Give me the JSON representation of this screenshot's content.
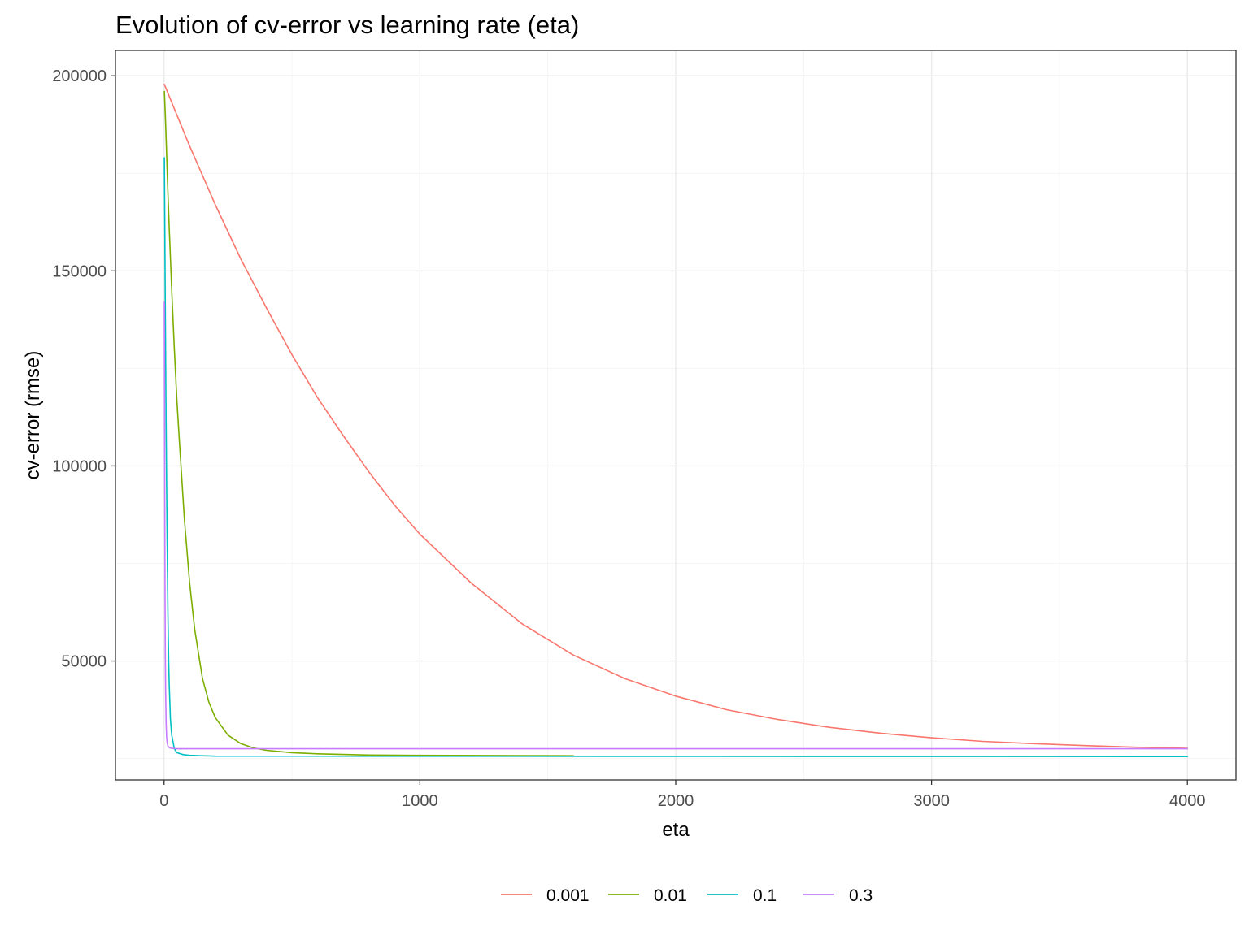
{
  "chart_data": {
    "type": "line",
    "title": "Evolution of cv-error vs learning rate (eta)",
    "xlabel": "eta",
    "ylabel": "cv-error (rmse)",
    "xlim": [
      -190,
      4190
    ],
    "ylim": [
      19500,
      206500
    ],
    "x_ticks": [
      0,
      1000,
      2000,
      3000,
      4000
    ],
    "x_tick_labels": [
      "0",
      "1000",
      "2000",
      "3000",
      "4000"
    ],
    "x_minor_ticks": [
      500,
      1500,
      2500,
      3500
    ],
    "y_ticks": [
      50000,
      100000,
      150000,
      200000
    ],
    "y_tick_labels": [
      "50000",
      "100000",
      "150000",
      "200000"
    ],
    "y_minor_ticks": [
      25000,
      75000,
      125000,
      175000
    ],
    "grid": true,
    "legend": {
      "position": "bottom",
      "orientation": "horizontal"
    },
    "series": [
      {
        "name": "0.001",
        "color": "#F8766D",
        "x": [
          1,
          100,
          200,
          300,
          400,
          500,
          600,
          700,
          800,
          900,
          1000,
          1200,
          1400,
          1600,
          1800,
          2000,
          2200,
          2400,
          2600,
          2800,
          3000,
          3200,
          3400,
          3600,
          3800,
          4000
        ],
        "values": [
          197800,
          182000,
          167000,
          153000,
          140500,
          128500,
          117500,
          107800,
          98500,
          90000,
          82500,
          70000,
          59500,
          51500,
          45500,
          41000,
          37500,
          35000,
          33000,
          31500,
          30300,
          29400,
          28800,
          28300,
          27900,
          27600
        ]
      },
      {
        "name": "0.01",
        "color": "#7CAE00",
        "x": [
          1,
          5,
          10,
          15,
          20,
          30,
          40,
          50,
          60,
          80,
          100,
          120,
          150,
          175,
          200,
          250,
          300,
          350,
          400,
          500,
          600,
          800,
          1000,
          1600
        ],
        "values": [
          196000,
          190000,
          180000,
          170000,
          161000,
          145000,
          130000,
          117000,
          106000,
          86000,
          70000,
          58000,
          45500,
          39500,
          35500,
          31000,
          28800,
          27700,
          27100,
          26500,
          26200,
          25900,
          25800,
          25700
        ]
      },
      {
        "name": "0.1",
        "color": "#00BFC4",
        "x": [
          1,
          3,
          5,
          8,
          10,
          12,
          15,
          18,
          20,
          25,
          30,
          40,
          50,
          75,
          100,
          200,
          4000
        ],
        "values": [
          179000,
          160000,
          140000,
          110000,
          95000,
          80000,
          62000,
          50000,
          44000,
          35000,
          31000,
          27500,
          26500,
          26000,
          25800,
          25600,
          25500
        ]
      },
      {
        "name": "0.3",
        "color": "#C77CFF",
        "x": [
          1,
          2,
          3,
          4,
          5,
          6,
          8,
          10,
          12,
          15,
          20,
          30,
          50,
          100,
          4000
        ],
        "values": [
          142000,
          110000,
          85000,
          66000,
          52000,
          42000,
          34000,
          30500,
          29000,
          28200,
          27800,
          27600,
          27500,
          27500,
          27500
        ]
      }
    ]
  }
}
